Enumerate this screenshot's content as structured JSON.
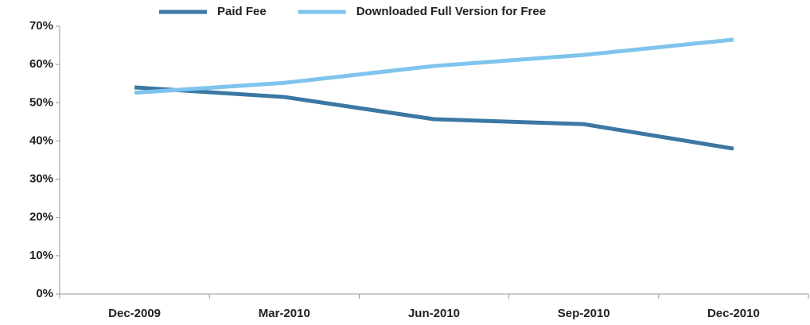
{
  "chart_data": {
    "type": "line",
    "categories": [
      "Dec-2009",
      "Mar-2010",
      "Jun-2010",
      "Sep-2010",
      "Dec-2010"
    ],
    "series": [
      {
        "name": "Paid Fee",
        "color": "#3b78a3",
        "values": [
          54,
          51.5,
          45.7,
          44.4,
          38
        ]
      },
      {
        "name": "Downloaded Full Version for Free",
        "color": "#7fc4ec",
        "values": [
          52.6,
          55.2,
          59.6,
          62.5,
          66.5
        ]
      }
    ],
    "ylim": [
      0,
      70
    ],
    "yticks": [
      {
        "value": 0,
        "label": "0%"
      },
      {
        "value": 10,
        "label": "10%"
      },
      {
        "value": 20,
        "label": "20%"
      },
      {
        "value": 30,
        "label": "30%"
      },
      {
        "value": 40,
        "label": "40%"
      },
      {
        "value": 50,
        "label": "50%"
      },
      {
        "value": 60,
        "label": "60%"
      },
      {
        "value": 70,
        "label": "70%"
      }
    ],
    "grid": false,
    "legend": "top"
  }
}
